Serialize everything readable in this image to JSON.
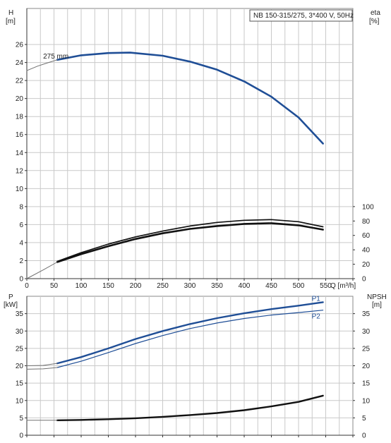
{
  "chart_data": [
    {
      "type": "line",
      "title": "NB 150-315/275, 3*400 V, 50Hz",
      "ylabel_left": "H",
      "ylabel_left_unit": "[m]",
      "ylabel_right": "eta",
      "ylabel_right_unit": "[%]",
      "xlabel": "Q [m³/h]",
      "xlim": [
        0,
        600
      ],
      "ylim_left": [
        0,
        30
      ],
      "ylim_right": [
        0,
        375
      ],
      "x_ticks": [
        "0",
        "50",
        "100",
        "150",
        "200",
        "250",
        "300",
        "350",
        "400",
        "450",
        "500",
        "550"
      ],
      "y_ticks_left": [
        "0",
        "2",
        "4",
        "6",
        "8",
        "10",
        "12",
        "14",
        "16",
        "18",
        "20",
        "22",
        "24",
        "26"
      ],
      "y_ticks_right": [
        "0",
        "20",
        "40",
        "60",
        "80",
        "100"
      ],
      "annotations": [
        {
          "text": "275 mm",
          "x": 30,
          "y": 24.3
        }
      ],
      "series": [
        {
          "axis": "left",
          "color": "#1f4e96",
          "width": 2.6,
          "x": [
            56,
            100,
            150,
            190,
            250,
            300,
            350,
            400,
            450,
            500,
            545
          ],
          "y": [
            24.3,
            24.8,
            25.05,
            25.1,
            24.75,
            24.1,
            23.2,
            21.9,
            20.2,
            17.9,
            15.0
          ]
        },
        {
          "axis": "left",
          "color": "#707070",
          "width": 1,
          "dashed": false,
          "x": [
            0,
            20,
            40,
            56
          ],
          "y": [
            23.1,
            23.6,
            24.0,
            24.3
          ]
        },
        {
          "axis": "right",
          "color": "#111111",
          "width": 1.7,
          "x": [
            56,
            100,
            150,
            200,
            250,
            300,
            350,
            400,
            450,
            500,
            545
          ],
          "y": [
            24,
            36,
            48,
            58,
            66,
            73,
            78,
            81,
            82,
            79,
            72
          ]
        },
        {
          "axis": "right",
          "color": "#111111",
          "width": 2.6,
          "x": [
            56,
            100,
            150,
            200,
            250,
            300,
            350,
            400,
            450,
            500,
            545
          ],
          "y": [
            23,
            34,
            45,
            55,
            63,
            69,
            73,
            76,
            77,
            74,
            68
          ]
        },
        {
          "axis": "right",
          "color": "#707070",
          "width": 1,
          "x": [
            0,
            30,
            56
          ],
          "y": [
            0,
            12,
            23
          ]
        }
      ]
    },
    {
      "type": "line",
      "ylabel_left": "P",
      "ylabel_left_unit": "[kW]",
      "ylabel_right": "NPSH",
      "ylabel_right_unit": "[m]",
      "xlim": [
        0,
        600
      ],
      "ylim_left": [
        0,
        40
      ],
      "ylim_right": [
        0,
        40
      ],
      "y_ticks_left": [
        "0",
        "5",
        "10",
        "15",
        "20",
        "25",
        "30",
        "35"
      ],
      "y_ticks_right": [
        "0",
        "5",
        "10",
        "15",
        "20",
        "25",
        "30",
        "35"
      ],
      "legend": [
        {
          "text": "P1",
          "x": 545,
          "y": 39.3,
          "color": "#1f4e96"
        },
        {
          "text": "P2",
          "x": 545,
          "y": 34.2,
          "color": "#1f4e96"
        }
      ],
      "series": [
        {
          "name": "P1",
          "axis": "left",
          "color": "#1f4e96",
          "width": 2.4,
          "x": [
            56,
            100,
            150,
            200,
            250,
            300,
            350,
            400,
            450,
            500,
            545
          ],
          "y": [
            20.7,
            22.5,
            25.0,
            27.7,
            30.0,
            32.0,
            33.7,
            35.1,
            36.3,
            37.3,
            38.3
          ]
        },
        {
          "name": "P2",
          "axis": "left",
          "color": "#1f4e96",
          "width": 1.2,
          "x": [
            56,
            100,
            150,
            200,
            250,
            300,
            350,
            400,
            450,
            500,
            545
          ],
          "y": [
            19.5,
            21.3,
            23.8,
            26.4,
            28.7,
            30.7,
            32.3,
            33.6,
            34.6,
            35.3,
            36.0
          ]
        },
        {
          "axis": "left",
          "color": "#707070",
          "width": 1,
          "x": [
            0,
            30,
            56
          ],
          "y": [
            20.0,
            20.1,
            20.7
          ]
        },
        {
          "axis": "left",
          "color": "#707070",
          "width": 1,
          "x": [
            0,
            30,
            56
          ],
          "y": [
            19.0,
            19.1,
            19.5
          ]
        },
        {
          "axis": "right",
          "color": "#111111",
          "width": 2.4,
          "x": [
            56,
            100,
            150,
            200,
            250,
            300,
            350,
            400,
            450,
            500,
            545
          ],
          "y": [
            4.3,
            4.4,
            4.6,
            4.9,
            5.3,
            5.8,
            6.4,
            7.2,
            8.3,
            9.6,
            11.4
          ]
        },
        {
          "axis": "right",
          "color": "#707070",
          "width": 1,
          "x": [
            0,
            30,
            56
          ],
          "y": [
            4.3,
            4.3,
            4.3
          ]
        }
      ]
    }
  ]
}
